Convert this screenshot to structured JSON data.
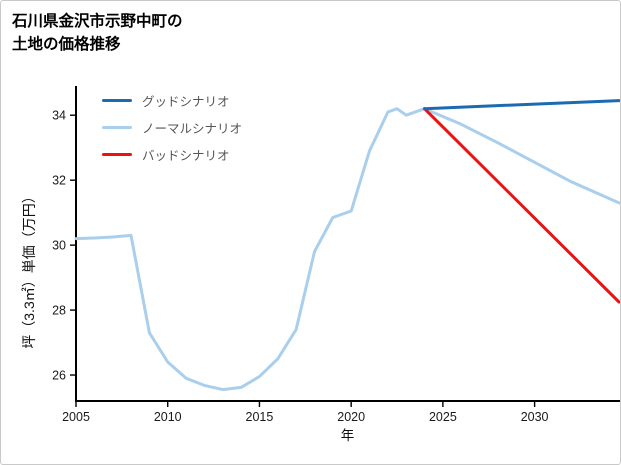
{
  "title": {
    "line1": "石川県金沢市示野中町の",
    "line2": "土地の価格推移"
  },
  "chart_data": {
    "type": "line",
    "title": "石川県金沢市示野中町の土地の価格推移",
    "xlabel": "年",
    "ylabel": "坪（3.3㎡）単価（万円）",
    "xlim": [
      2005,
      2034.6
    ],
    "ylim": [
      25.2,
      34.9
    ],
    "xticks": [
      2005,
      2010,
      2015,
      2020,
      2025,
      2030
    ],
    "yticks": [
      26,
      28,
      30,
      32,
      34
    ],
    "grid": false,
    "legend_position": "top-left",
    "draw_order": [
      1,
      2,
      0
    ],
    "series": [
      {
        "name": "グッドシナリオ",
        "color": "#1c6ab2",
        "width": 3,
        "points": [
          [
            2024,
            34.2
          ],
          [
            2034.6,
            34.45
          ]
        ]
      },
      {
        "name": "ノーマルシナリオ",
        "color": "#a9cfed",
        "width": 3,
        "points": [
          [
            2005,
            30.2
          ],
          [
            2006,
            30.22
          ],
          [
            2007,
            30.25
          ],
          [
            2008,
            30.3
          ],
          [
            2009,
            27.3
          ],
          [
            2010,
            26.4
          ],
          [
            2011,
            25.9
          ],
          [
            2012,
            25.68
          ],
          [
            2013,
            25.55
          ],
          [
            2014,
            25.62
          ],
          [
            2015,
            25.95
          ],
          [
            2016,
            26.5
          ],
          [
            2017,
            27.4
          ],
          [
            2018,
            29.8
          ],
          [
            2019,
            30.85
          ],
          [
            2020,
            31.05
          ],
          [
            2021,
            32.9
          ],
          [
            2022,
            34.1
          ],
          [
            2022.5,
            34.2
          ],
          [
            2023,
            34.0
          ],
          [
            2024,
            34.2
          ],
          [
            2026,
            33.72
          ],
          [
            2028,
            33.15
          ],
          [
            2030,
            32.55
          ],
          [
            2032,
            31.95
          ],
          [
            2034.6,
            31.3
          ]
        ]
      },
      {
        "name": "バッドシナリオ",
        "color": "#ec1212",
        "width": 3,
        "points": [
          [
            2024,
            34.2
          ],
          [
            2034.6,
            28.25
          ]
        ]
      }
    ]
  }
}
